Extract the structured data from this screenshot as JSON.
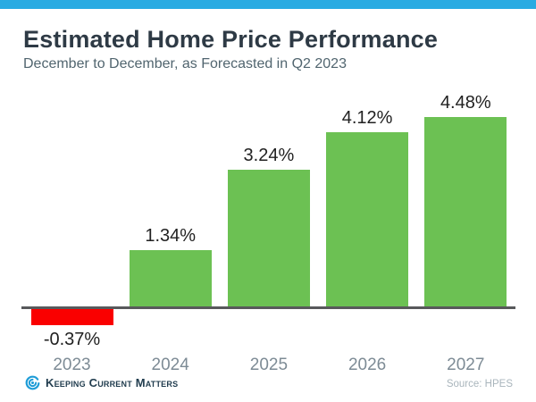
{
  "page": {
    "title": "Estimated Home Price Performance",
    "subtitle": "December to December, as Forecasted in Q2 2023",
    "source": "Source: HPES",
    "logo_text": "Keeping Current Matters"
  },
  "colors": {
    "top_bar": "#29ABE2",
    "positive_bar": "#6CC153",
    "negative_bar": "#FA0000",
    "axis": "#58595B",
    "title": "#2E3A45",
    "subtitle": "#51656F",
    "value_label": "#212121",
    "year_label": "#7D8B95",
    "source": "#A9B5BC",
    "logo": "#1F3B4D",
    "logo_icon": "#1E9CD7"
  },
  "chart_data": {
    "type": "bar",
    "title": "Estimated Home Price Performance",
    "subtitle": "December to December, as Forecasted in Q2 2023",
    "categories": [
      "2023",
      "2024",
      "2025",
      "2026",
      "2027"
    ],
    "values": [
      -0.37,
      1.34,
      3.24,
      4.12,
      4.48
    ],
    "value_labels": [
      "-0.37%",
      "1.34%",
      "3.24%",
      "4.12%",
      "4.48%"
    ],
    "unit": "%",
    "xlabel": "",
    "ylabel": "",
    "ylim": [
      -1,
      5
    ],
    "grid": false,
    "legend": false,
    "bar_colors": [
      "#FA0000",
      "#6CC153",
      "#6CC153",
      "#6CC153",
      "#6CC153"
    ],
    "source": "Source: HPES"
  }
}
